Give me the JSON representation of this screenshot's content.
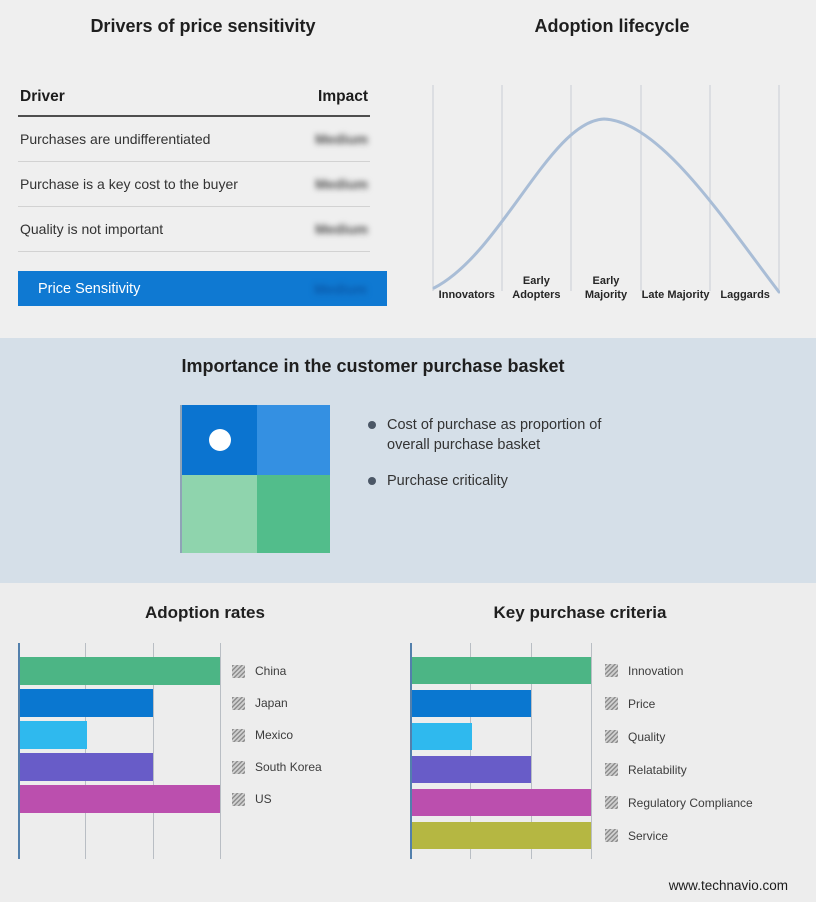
{
  "page": {
    "footer": "www.technavio.com"
  },
  "drivers_panel": {
    "title": "Drivers of price sensitivity",
    "columns": {
      "driver": "Driver",
      "impact": "Impact"
    },
    "rows": [
      {
        "driver": "Purchases are undifferentiated",
        "impact": "Medium"
      },
      {
        "driver": "Purchase is a key cost to the buyer",
        "impact": "Medium"
      },
      {
        "driver": "Quality is not important",
        "impact": "Medium"
      }
    ],
    "summary_row": {
      "label": "Price Sensitivity",
      "impact": "Medium"
    },
    "accent_color": "#0f79d2"
  },
  "lifecycle_panel": {
    "title": "Adoption lifecycle",
    "stages": [
      "Innovators",
      "Early Adopters",
      "Early Majority",
      "Late Majority",
      "Laggards"
    ],
    "curve_color": "#a9bdd6"
  },
  "basket_panel": {
    "title": "Importance in the customer purchase basket",
    "bullets": [
      "Cost of purchase as proportion of overall purchase basket",
      "Purchase criticality"
    ],
    "quadrant_colors": {
      "top_left": "#0b74d0",
      "top_right": "#3490e2",
      "bottom_left": "#8fd4ad",
      "bottom_right": "#52bd8b"
    }
  },
  "chart_data": [
    {
      "type": "bar",
      "title": "Adoption rates",
      "orientation": "horizontal",
      "categories": [
        "China",
        "Japan",
        "Mexico",
        "South Korea",
        "US"
      ],
      "values": [
        3,
        2,
        1,
        2,
        3
      ],
      "colors": [
        "#4cb585",
        "#0a77d0",
        "#2fb9ee",
        "#685cc8",
        "#bb4fae"
      ],
      "xlim": [
        0,
        3
      ],
      "gridlines": [
        1,
        2,
        3
      ],
      "value_axis_labels_visible": false,
      "legend_position": "right",
      "legend_swatch_style": "gray-hatched"
    },
    {
      "type": "bar",
      "title": "Key purchase criteria",
      "orientation": "horizontal",
      "categories": [
        "Innovation",
        "Price",
        "Quality",
        "Relatability",
        "Regulatory Compliance",
        "Service"
      ],
      "values": [
        3,
        2,
        1,
        2,
        3,
        3
      ],
      "colors": [
        "#4cb585",
        "#0a77d0",
        "#2fb9ee",
        "#685cc8",
        "#bb4fae",
        "#b5b742"
      ],
      "xlim": [
        0,
        3
      ],
      "gridlines": [
        1,
        2,
        3
      ],
      "value_axis_labels_visible": false,
      "legend_position": "right",
      "legend_swatch_style": "gray-hatched"
    },
    {
      "type": "line",
      "title": "Adoption lifecycle",
      "categories": [
        "Innovators",
        "Early Adopters",
        "Early Majority",
        "Late Majority",
        "Laggards"
      ],
      "shape": "bell-curve",
      "peak_stage": "Early Majority",
      "grid": true
    }
  ]
}
